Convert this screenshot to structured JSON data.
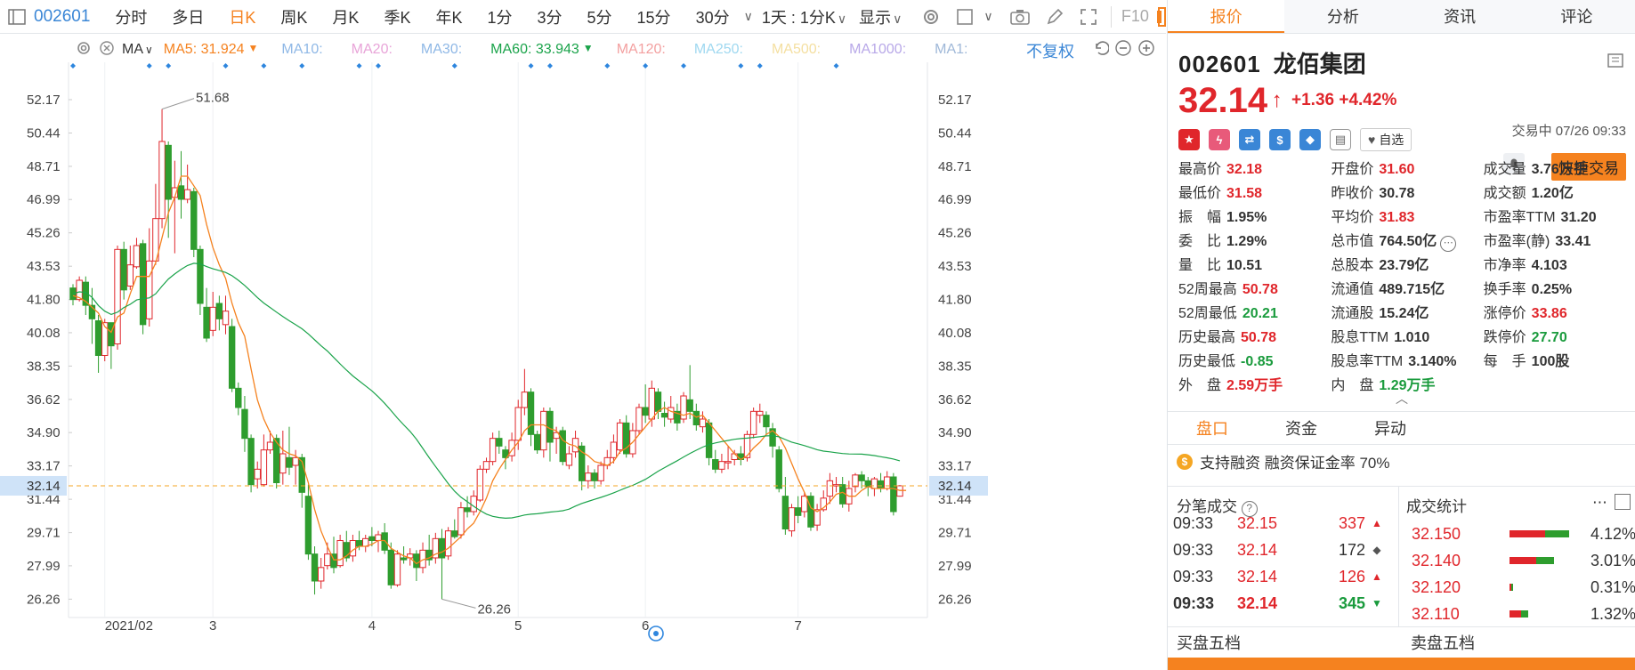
{
  "toolbar": {
    "code": "002601",
    "timeframes": [
      "分时",
      "多日",
      "日K",
      "周K",
      "月K",
      "季K",
      "年K",
      "1分",
      "3分",
      "5分",
      "15分",
      "30分"
    ],
    "active_timeframe": "日K",
    "period_select": "1天 : 1分K",
    "display_label": "显示",
    "f10_label": "F10",
    "icons": [
      "settings-icon",
      "checkbox-icon",
      "camera-icon",
      "pen-icon",
      "fullscreen-icon"
    ]
  },
  "ma_legend": {
    "type_label": "MA",
    "items": [
      {
        "label": "MA5: 31.924",
        "color": "#f5821f",
        "active": true
      },
      {
        "label": "MA10:",
        "color": "#8fb8e6",
        "active": false
      },
      {
        "label": "MA20:",
        "color": "#e8a4d8",
        "active": false
      },
      {
        "label": "MA30:",
        "color": "#8fb8e6",
        "active": false
      },
      {
        "label": "MA60: 33.943",
        "color": "#1aa34a",
        "active": true
      },
      {
        "label": "MA120:",
        "color": "#f3a0a0",
        "active": false
      },
      {
        "label": "MA250:",
        "color": "#9fd8f0",
        "active": false
      },
      {
        "label": "MA500:",
        "color": "#f4dfa0",
        "active": false
      },
      {
        "label": "MA1000:",
        "color": "#b8a8e8",
        "active": false
      },
      {
        "label": "MA1:",
        "color": "#9fb8d8",
        "active": false
      }
    ],
    "adjust_label": "不复权"
  },
  "chart_data": {
    "type": "candlestick",
    "y_ticks": [
      "52.17",
      "50.44",
      "48.71",
      "46.99",
      "45.26",
      "43.53",
      "41.80",
      "40.08",
      "38.35",
      "36.62",
      "34.90",
      "33.17",
      "31.44",
      "29.71",
      "27.99",
      "26.26"
    ],
    "ylim": [
      25.4,
      53.0
    ],
    "x_labels": [
      {
        "label": "2021/02",
        "i": 5
      },
      {
        "label": "3",
        "i": 22
      },
      {
        "label": "4",
        "i": 47
      },
      {
        "label": "5",
        "i": 70
      },
      {
        "label": "6",
        "i": 90
      },
      {
        "label": "7",
        "i": 114
      }
    ],
    "current_price": "32.14",
    "high_annotation": {
      "label": "51.68",
      "value": 51.68,
      "i": 14
    },
    "low_annotation": {
      "label": "26.26",
      "value": 26.26,
      "i": 58
    },
    "candles": [
      [
        42.4,
        41.8,
        42.6,
        41.5
      ],
      [
        41.8,
        42.8,
        43.0,
        41.7
      ],
      [
        42.7,
        41.5,
        43.0,
        41.0
      ],
      [
        41.5,
        40.8,
        42.4,
        39.5
      ],
      [
        40.7,
        38.9,
        41.0,
        38.0
      ],
      [
        38.9,
        40.6,
        40.8,
        38.6
      ],
      [
        40.6,
        39.4,
        40.6,
        38.2
      ],
      [
        39.5,
        44.4,
        44.6,
        39.2
      ],
      [
        44.4,
        42.3,
        44.8,
        41.8
      ],
      [
        42.5,
        43.6,
        44.6,
        42.3
      ],
      [
        43.5,
        44.6,
        45.0,
        43.4
      ],
      [
        44.7,
        40.5,
        44.9,
        40.0
      ],
      [
        40.8,
        43.8,
        45.5,
        40.4
      ],
      [
        43.8,
        46.0,
        47.8,
        43.6
      ],
      [
        46.0,
        50.0,
        51.68,
        45.5
      ],
      [
        49.8,
        47.0,
        50.0,
        45.0
      ],
      [
        47.1,
        47.6,
        49.0,
        44.2
      ],
      [
        47.7,
        47.0,
        49.5,
        46.0
      ],
      [
        47.0,
        47.5,
        48.8,
        46.8
      ],
      [
        47.4,
        44.4,
        47.6,
        44.0
      ],
      [
        44.4,
        41.6,
        44.6,
        41.0
      ],
      [
        41.4,
        39.8,
        42.4,
        39.6
      ],
      [
        40.2,
        41.4,
        42.2,
        39.9
      ],
      [
        41.6,
        40.8,
        42.0,
        40.2
      ],
      [
        40.5,
        41.2,
        42.0,
        40.0
      ],
      [
        40.4,
        37.2,
        40.8,
        37.0
      ],
      [
        37.2,
        36.2,
        37.5,
        35.8
      ],
      [
        36.1,
        34.6,
        36.8,
        33.9
      ],
      [
        34.6,
        32.2,
        34.8,
        31.8
      ],
      [
        32.5,
        33.0,
        33.4,
        32.0
      ],
      [
        32.2,
        34.0,
        34.8,
        32.1
      ],
      [
        34.0,
        34.4,
        35.0,
        33.8
      ],
      [
        34.6,
        32.3,
        34.8,
        32.0
      ],
      [
        32.8,
        33.8,
        35.0,
        32.2
      ],
      [
        33.6,
        33.1,
        35.2,
        32.7
      ],
      [
        33.2,
        33.6,
        34.0,
        32.2
      ],
      [
        33.6,
        31.8,
        33.8,
        31.0
      ],
      [
        31.6,
        28.6,
        32.2,
        28.3
      ],
      [
        28.6,
        27.2,
        29.0,
        26.5
      ],
      [
        27.2,
        27.9,
        28.4,
        26.8
      ],
      [
        28.0,
        28.6,
        29.2,
        27.8
      ],
      [
        28.6,
        27.9,
        29.5,
        27.6
      ],
      [
        28.0,
        29.3,
        29.6,
        27.9
      ],
      [
        29.2,
        28.4,
        29.8,
        28.2
      ],
      [
        28.5,
        29.3,
        29.6,
        28.2
      ],
      [
        29.3,
        29.0,
        29.8,
        28.8
      ],
      [
        29.0,
        29.4,
        29.6,
        28.7
      ],
      [
        29.5,
        29.3,
        30.0,
        29.0
      ],
      [
        29.3,
        29.6,
        29.8,
        28.7
      ],
      [
        29.7,
        28.8,
        30.2,
        28.6
      ],
      [
        28.8,
        27.0,
        29.2,
        26.8
      ],
      [
        27.0,
        28.6,
        28.8,
        26.9
      ],
      [
        28.4,
        28.3,
        29.0,
        28.1
      ],
      [
        28.4,
        28.6,
        28.9,
        28.0
      ],
      [
        28.6,
        27.9,
        28.8,
        27.2
      ],
      [
        27.9,
        28.8,
        29.2,
        27.6
      ],
      [
        28.8,
        28.3,
        29.6,
        28.0
      ],
      [
        28.4,
        29.4,
        29.7,
        28.1
      ],
      [
        29.4,
        28.4,
        29.9,
        26.26
      ],
      [
        28.5,
        29.8,
        30.0,
        28.3
      ],
      [
        29.8,
        29.5,
        30.4,
        29.4
      ],
      [
        29.6,
        31.0,
        31.3,
        29.4
      ],
      [
        31.0,
        30.8,
        31.6,
        30.5
      ],
      [
        30.8,
        31.6,
        31.9,
        30.6
      ],
      [
        31.4,
        33.0,
        33.2,
        31.3
      ],
      [
        33.0,
        33.4,
        33.6,
        32.8
      ],
      [
        33.4,
        34.6,
        34.9,
        33.2
      ],
      [
        34.6,
        34.2,
        35.0,
        33.8
      ],
      [
        34.0,
        33.6,
        34.2,
        33.0
      ],
      [
        33.7,
        34.5,
        34.9,
        33.4
      ],
      [
        34.5,
        36.2,
        36.6,
        34.0
      ],
      [
        36.2,
        37.0,
        38.2,
        35.8
      ],
      [
        37.0,
        34.8,
        37.2,
        34.2
      ],
      [
        34.8,
        34.0,
        35.0,
        33.8
      ],
      [
        34.0,
        36.0,
        36.2,
        33.6
      ],
      [
        36.0,
        34.4,
        36.2,
        33.4
      ],
      [
        34.6,
        34.9,
        35.2,
        33.8
      ],
      [
        35.0,
        33.4,
        35.2,
        33.2
      ],
      [
        33.2,
        33.8,
        34.2,
        33.0
      ],
      [
        33.9,
        34.6,
        35.0,
        33.6
      ],
      [
        34.2,
        32.4,
        34.4,
        31.9
      ],
      [
        32.4,
        32.8,
        33.2,
        32.0
      ],
      [
        32.8,
        32.4,
        33.0,
        32.0
      ],
      [
        32.4,
        33.2,
        33.4,
        32.2
      ],
      [
        33.2,
        33.6,
        34.0,
        33.0
      ],
      [
        33.6,
        34.4,
        34.8,
        33.3
      ],
      [
        34.0,
        35.4,
        35.6,
        33.8
      ],
      [
        35.4,
        33.8,
        35.8,
        33.6
      ],
      [
        33.8,
        35.0,
        35.4,
        33.6
      ],
      [
        35.0,
        36.2,
        36.4,
        34.8
      ],
      [
        36.2,
        35.8,
        37.4,
        35.4
      ],
      [
        35.6,
        37.2,
        37.6,
        35.2
      ],
      [
        37.0,
        36.0,
        37.2,
        35.6
      ],
      [
        35.9,
        35.7,
        36.5,
        35.2
      ],
      [
        35.6,
        36.2,
        36.8,
        35.4
      ],
      [
        36.0,
        35.4,
        36.4,
        35.0
      ],
      [
        35.6,
        36.8,
        37.0,
        35.4
      ],
      [
        36.6,
        36.0,
        38.4,
        35.6
      ],
      [
        36.0,
        35.3,
        36.4,
        35.0
      ],
      [
        35.2,
        35.6,
        36.0,
        34.9
      ],
      [
        35.4,
        33.6,
        35.6,
        33.2
      ],
      [
        33.5,
        33.0,
        34.0,
        32.8
      ],
      [
        33.0,
        33.4,
        33.8,
        32.8
      ],
      [
        33.4,
        33.4,
        34.2,
        33.0
      ],
      [
        33.5,
        33.8,
        34.0,
        33.2
      ],
      [
        33.8,
        33.5,
        34.2,
        33.2
      ],
      [
        33.6,
        34.8,
        35.0,
        33.4
      ],
      [
        34.8,
        36.0,
        36.2,
        34.6
      ],
      [
        35.8,
        36.0,
        36.4,
        35.4
      ],
      [
        35.8,
        35.2,
        36.0,
        34.8
      ],
      [
        35.1,
        34.2,
        35.4,
        33.6
      ],
      [
        34.0,
        32.0,
        34.2,
        31.8
      ],
      [
        31.6,
        29.9,
        32.6,
        29.6
      ],
      [
        29.8,
        31.0,
        31.2,
        29.5
      ],
      [
        31.0,
        30.6,
        31.6,
        30.2
      ],
      [
        30.8,
        31.6,
        31.8,
        30.5
      ],
      [
        31.6,
        30.0,
        31.8,
        29.8
      ],
      [
        30.1,
        30.9,
        31.2,
        29.8
      ],
      [
        30.9,
        31.5,
        31.9,
        30.8
      ],
      [
        31.6,
        32.4,
        32.8,
        31.2
      ],
      [
        32.2,
        32.2,
        32.6,
        31.8
      ],
      [
        32.2,
        31.2,
        32.6,
        31.0
      ],
      [
        31.2,
        32.0,
        32.4,
        30.8
      ],
      [
        32.1,
        32.7,
        32.8,
        31.8
      ],
      [
        32.7,
        32.4,
        32.9,
        32.0
      ],
      [
        32.4,
        32.1,
        32.6,
        31.6
      ],
      [
        32.0,
        32.5,
        32.6,
        31.6
      ],
      [
        32.4,
        32.0,
        32.8,
        31.8
      ],
      [
        32.0,
        32.6,
        32.9,
        31.9
      ],
      [
        32.6,
        30.8,
        32.8,
        30.6
      ],
      [
        31.6,
        32.14,
        32.18,
        31.58
      ]
    ],
    "ma5": [
      42.0,
      41.9,
      41.7,
      41.4,
      41.1,
      40.4,
      40.1,
      40.9,
      41.1,
      42.1,
      43.0,
      43.0,
      43.0,
      43.7,
      45.0,
      46.3,
      47.1,
      48.2,
      48.2,
      47.7,
      47.2,
      45.7,
      44.5,
      43.6,
      42.9,
      41.6,
      40.6,
      39.9,
      38.2,
      36.6,
      35.6,
      34.9,
      34.4,
      34.0,
      33.8,
      33.7,
      33.4,
      32.3,
      30.9,
      29.8,
      29.0,
      28.3,
      28.3,
      28.5,
      28.8,
      29.0,
      29.0,
      29.1,
      29.3,
      29.3,
      28.9,
      28.7,
      28.5,
      28.4,
      28.1,
      28.3,
      28.4,
      28.6,
      28.7,
      28.9,
      29.2,
      29.5,
      29.9,
      30.2,
      30.8,
      31.5,
      32.4,
      33.0,
      33.5,
      34.0,
      34.4,
      35.0,
      35.3,
      35.3,
      35.3,
      35.1,
      35.0,
      34.5,
      34.3,
      34.2,
      33.9,
      33.7,
      33.4,
      33.3,
      33.2,
      33.4,
      33.9,
      34.1,
      34.4,
      34.8,
      35.2,
      35.6,
      36.0,
      36.2,
      36.0,
      35.9,
      35.8,
      35.9,
      35.7,
      35.8,
      35.4,
      35.0,
      34.6,
      34.2,
      33.8,
      33.5,
      33.7,
      34.1,
      34.4,
      34.8,
      35.0,
      34.7,
      34.1,
      33.3,
      32.5,
      31.8,
      31.0,
      30.8,
      31.0,
      31.3,
      31.7,
      31.8,
      31.6,
      31.6,
      31.9,
      32.1,
      32.0,
      32.0,
      32.0,
      32.0,
      31.9,
      31.9
    ]
  },
  "right_panel": {
    "tabs": [
      "报价",
      "分析",
      "资讯",
      "评论"
    ],
    "active_tab": "报价",
    "code": "002601",
    "name": "龙佰集团",
    "price": "32.14",
    "change": "+1.36 +4.42%",
    "status": "交易中 07/26 09:33",
    "watch_label": "自选",
    "quick_trade": "快捷交易",
    "stats": [
      [
        {
          "k": "最高价",
          "v": "32.18",
          "c": "red"
        },
        {
          "k": "开盘价",
          "v": "31.60",
          "c": "red"
        },
        {
          "k": "成交量",
          "v": "3.76万手",
          "c": "blk"
        }
      ],
      [
        {
          "k": "最低价",
          "v": "31.58",
          "c": "red"
        },
        {
          "k": "昨收价",
          "v": "30.78",
          "c": "blk"
        },
        {
          "k": "成交额",
          "v": "1.20亿",
          "c": "blk"
        }
      ],
      [
        {
          "k": "振　幅",
          "v": "1.95%",
          "c": "blk"
        },
        {
          "k": "平均价",
          "v": "31.83",
          "c": "red"
        },
        {
          "k": "市盈率TTM",
          "v": "31.20",
          "c": "blk"
        }
      ],
      [
        {
          "k": "委　比",
          "v": "1.29%",
          "c": "blk"
        },
        {
          "k": "总市值",
          "v": "764.50亿",
          "c": "blk"
        },
        {
          "k": "市盈率(静)",
          "v": "33.41",
          "c": "blk"
        }
      ],
      [
        {
          "k": "量　比",
          "v": "10.51",
          "c": "blk"
        },
        {
          "k": "总股本",
          "v": "23.79亿",
          "c": "blk"
        },
        {
          "k": "市净率",
          "v": "4.103",
          "c": "blk"
        }
      ],
      [
        {
          "k": "52周最高",
          "v": "50.78",
          "c": "red"
        },
        {
          "k": "流通值",
          "v": "489.715亿",
          "c": "blk"
        },
        {
          "k": "换手率",
          "v": "0.25%",
          "c": "blk"
        }
      ],
      [
        {
          "k": "52周最低",
          "v": "20.21",
          "c": "green"
        },
        {
          "k": "流通股",
          "v": "15.24亿",
          "c": "blk"
        },
        {
          "k": "涨停价",
          "v": "33.86",
          "c": "red"
        }
      ],
      [
        {
          "k": "历史最高",
          "v": "50.78",
          "c": "red"
        },
        {
          "k": "股息TTM",
          "v": "1.010",
          "c": "blk"
        },
        {
          "k": "跌停价",
          "v": "27.70",
          "c": "green"
        }
      ],
      [
        {
          "k": "历史最低",
          "v": "-0.85",
          "c": "green"
        },
        {
          "k": "股息率TTM",
          "v": "3.140%",
          "c": "blk"
        },
        {
          "k": "每　手",
          "v": "100股",
          "c": "blk"
        }
      ],
      [
        {
          "k": "外　盘",
          "v": "2.59万手",
          "c": "red"
        },
        {
          "k": "内　盘",
          "v": "1.29万手",
          "c": "green"
        },
        {
          "k": "",
          "v": "",
          "c": "blk"
        }
      ]
    ],
    "sub_tabs": [
      "盘口",
      "资金",
      "异动"
    ],
    "active_sub_tab": "盘口",
    "margin_text": "支持融资 融资保证金率 70%",
    "ticks_title": "分笔成交",
    "ticks": [
      {
        "t": "09:33",
        "p": "32.15",
        "v": "337",
        "dir": "up"
      },
      {
        "t": "09:33",
        "p": "32.14",
        "v": "172",
        "dir": "flat"
      },
      {
        "t": "09:33",
        "p": "32.14",
        "v": "126",
        "dir": "up"
      },
      {
        "t": "09:33",
        "p": "32.14",
        "v": "345",
        "dir": "down"
      }
    ],
    "dist_title": "成交统计",
    "dist": [
      {
        "p": "32.150",
        "pct": "4.12%",
        "frac": 0.95
      },
      {
        "p": "32.140",
        "pct": "3.01%",
        "frac": 0.72
      },
      {
        "p": "32.120",
        "pct": "0.31%",
        "frac": 0.06
      },
      {
        "p": "32.110",
        "pct": "1.32%",
        "frac": 0.3
      }
    ],
    "book_buy": "买盘五档",
    "book_sell": "卖盘五档"
  }
}
